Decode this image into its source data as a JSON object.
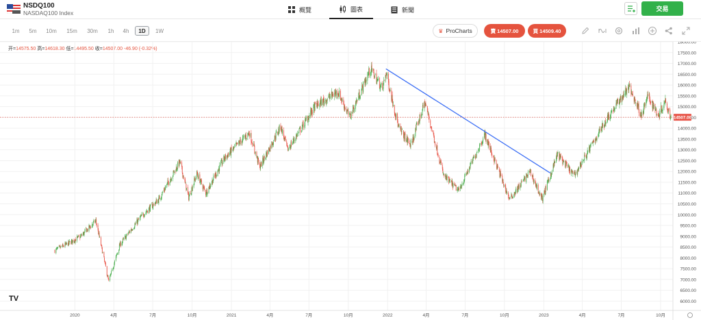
{
  "header": {
    "symbol": "NSDQ100",
    "description": "NASDAQ100 Index",
    "tabs": [
      {
        "label": "概覽",
        "icon": "grid-icon"
      },
      {
        "label": "圖表",
        "icon": "candlestick-icon"
      },
      {
        "label": "新聞",
        "icon": "news-icon"
      }
    ],
    "active_tab": "圖表",
    "trade_label": "交易",
    "menu_icon": "list-menu-icon",
    "flag_icon": "us-flag-icon"
  },
  "toolbar": {
    "timeframes": [
      "1m",
      "5m",
      "10m",
      "15m",
      "30m",
      "1h",
      "4h",
      "1D",
      "1W"
    ],
    "active_timeframe": "1D",
    "prochart_label": "ProCharts",
    "sell_label": "賣 14507.00",
    "buy_label": "買 14509.40",
    "tools": [
      "pencil-icon",
      "indicators-icon",
      "settings-icon",
      "bar-chart-icon",
      "add-icon",
      "share-icon",
      "fullscreen-icon"
    ]
  },
  "ohlc": {
    "open_label": "开=",
    "open": "14575.50",
    "high_label": "高=",
    "high": "14618.30",
    "low_label": "低=",
    "low": "14495.50",
    "close_label": "收=",
    "close": "14507.00",
    "change": "-46.90 (-0.32%)"
  },
  "colors": {
    "accent_red": "#e5533e",
    "accent_green": "#32b14a",
    "up_candle": "#4caf50",
    "down_candle": "#e8564a",
    "trendline": "#3b6ef5"
  },
  "chart_data": {
    "type": "candlestick",
    "symbol": "NSDQ100",
    "ylim": [
      5600,
      18000
    ],
    "yticks": [
      6000,
      6500,
      7000,
      7500,
      8000,
      8500,
      9000,
      9500,
      10000,
      10500,
      11000,
      11500,
      12000,
      12500,
      13000,
      13500,
      14000,
      14500,
      15000,
      15500,
      16000,
      16500,
      17000,
      17500,
      18000
    ],
    "ytick_labels": [
      "6000.00",
      "6500.00",
      "7000.00",
      "7500.00",
      "8000.00",
      "8500.00",
      "9000.00",
      "9500.00",
      "10000.00",
      "10500.00",
      "11000.00",
      "11500.00",
      "12000.00",
      "12500.00",
      "13000.00",
      "13500.00",
      "14000.00",
      "14500.00",
      "15000.00",
      "15500.00",
      "16000.00",
      "16500.00",
      "17000.00",
      "17500.00",
      "18000.00"
    ],
    "x_labels": [
      "2020",
      "4月",
      "7月",
      "10月",
      "2021",
      "4月",
      "7月",
      "10月",
      "2022",
      "4月",
      "7月",
      "10月",
      "2023",
      "4月",
      "7月",
      "10月"
    ],
    "x_label_dates": [
      "2020-01",
      "2020-04",
      "2020-07",
      "2020-10",
      "2021-01",
      "2021-04",
      "2021-07",
      "2021-10",
      "2022-01",
      "2022-04",
      "2022-07",
      "2022-10",
      "2023-01",
      "2023-04",
      "2023-07",
      "2023-10"
    ],
    "date_range": [
      "2019-11-15",
      "2023-10-25"
    ],
    "current_price": 14507.0,
    "current_price_label": "14507.00",
    "price_path": [
      [
        "2019-11-15",
        8340
      ],
      [
        "2019-12-15",
        8650
      ],
      [
        "2020-01-15",
        9000
      ],
      [
        "2020-02-19",
        9720
      ],
      [
        "2020-03-02",
        8600
      ],
      [
        "2020-03-20",
        6900
      ],
      [
        "2020-04-15",
        8600
      ],
      [
        "2020-05-15",
        9400
      ],
      [
        "2020-06-08",
        10000
      ],
      [
        "2020-07-15",
        10700
      ],
      [
        "2020-09-02",
        12440
      ],
      [
        "2020-09-23",
        10800
      ],
      [
        "2020-10-12",
        11900
      ],
      [
        "2020-11-02",
        11000
      ],
      [
        "2020-12-15",
        12600
      ],
      [
        "2021-02-12",
        13800
      ],
      [
        "2021-03-08",
        12200
      ],
      [
        "2021-04-26",
        14100
      ],
      [
        "2021-05-12",
        13000
      ],
      [
        "2021-07-15",
        15000
      ],
      [
        "2021-09-07",
        15700
      ],
      [
        "2021-10-04",
        14500
      ],
      [
        "2021-11-22",
        16750
      ],
      [
        "2021-12-20",
        15800
      ],
      [
        "2021-12-28",
        16600
      ],
      [
        "2022-01-27",
        14000
      ],
      [
        "2022-02-24",
        13200
      ],
      [
        "2022-03-29",
        15200
      ],
      [
        "2022-05-12",
        11800
      ],
      [
        "2022-06-16",
        11100
      ],
      [
        "2022-08-16",
        13700
      ],
      [
        "2022-10-13",
        10700
      ],
      [
        "2022-11-30",
        12000
      ],
      [
        "2022-12-28",
        10700
      ],
      [
        "2023-02-02",
        12800
      ],
      [
        "2023-03-13",
        11800
      ],
      [
        "2023-05-30",
        14500
      ],
      [
        "2023-07-19",
        15900
      ],
      [
        "2023-08-18",
        14600
      ],
      [
        "2023-09-01",
        15500
      ],
      [
        "2023-09-26",
        14600
      ],
      [
        "2023-10-12",
        15300
      ],
      [
        "2023-10-25",
        14507
      ]
    ],
    "trendline": {
      "start": [
        "2021-12-28",
        16750
      ],
      "end": [
        "2023-01-16",
        11930
      ]
    },
    "watermark": "TV"
  }
}
